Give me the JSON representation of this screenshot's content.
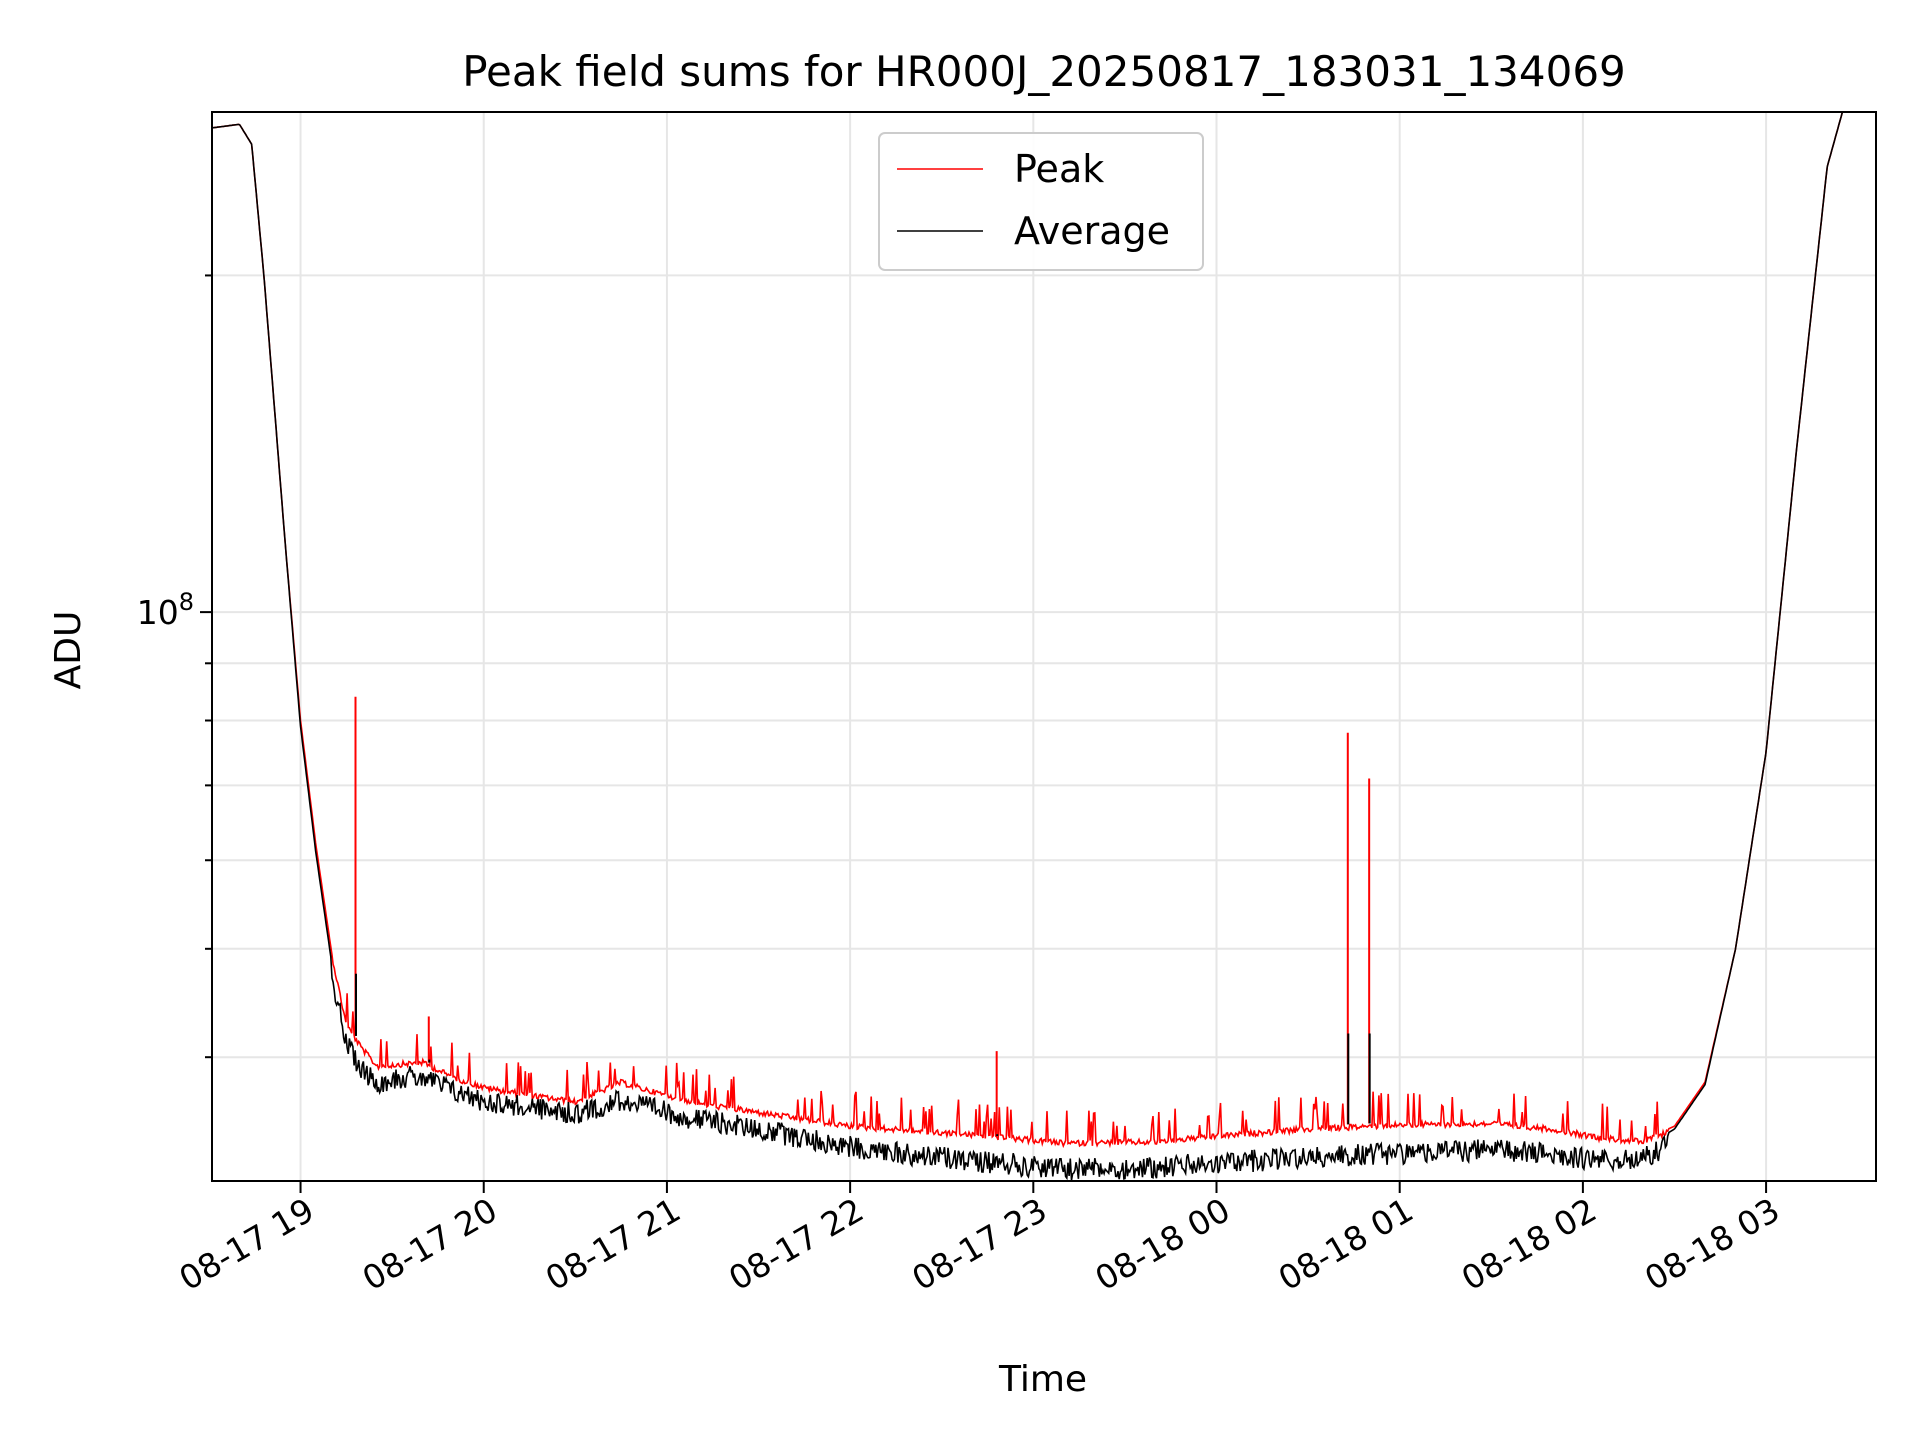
{
  "chart_data": {
    "type": "line",
    "title": "Peak field sums for HR000J_20250817_183031_134069",
    "xlabel": "Time",
    "ylabel": "ADU",
    "yscale": "log",
    "grid": true,
    "legend_placement": "upper center",
    "xlim": [
      "2025-08-17 18:31",
      "2025-08-18 03:36"
    ],
    "ylim": [
      31000000,
      280000000
    ],
    "x_ticks": [
      "08-17 19",
      "08-17 20",
      "08-17 21",
      "08-17 22",
      "08-17 23",
      "08-18 00",
      "08-18 01",
      "08-18 02",
      "08-18 03"
    ],
    "y_ticks": [
      {
        "value": 100000000,
        "label_base": "10",
        "label_exp": "8"
      }
    ],
    "series": [
      {
        "name": "Peak",
        "color": "#ff0000",
        "points": [
          [
            "2025-08-17 18:31",
            271000000
          ],
          [
            "2025-08-17 18:40",
            273000000
          ],
          [
            "2025-08-17 18:44",
            262000000
          ],
          [
            "2025-08-17 18:48",
            200000000
          ],
          [
            "2025-08-17 18:55",
            115000000
          ],
          [
            "2025-08-17 19:00",
            80000000
          ],
          [
            "2025-08-17 19:05",
            62000000
          ],
          [
            "2025-08-17 19:10",
            50000000
          ],
          [
            "2025-08-17 19:15",
            43000000
          ],
          [
            "2025-08-17 19:20",
            41000000
          ],
          [
            "2025-08-17 19:25",
            39500000
          ],
          [
            "2025-08-17 19:30",
            39600000
          ],
          [
            "2025-08-17 19:40",
            39800000
          ],
          [
            "2025-08-17 19:50",
            38600000
          ],
          [
            "2025-08-17 20:00",
            37800000
          ],
          [
            "2025-08-17 20:15",
            37200000
          ],
          [
            "2025-08-17 20:30",
            36700000
          ],
          [
            "2025-08-17 20:45",
            38200000
          ],
          [
            "2025-08-17 20:55",
            37500000
          ],
          [
            "2025-08-17 21:10",
            36600000
          ],
          [
            "2025-08-17 21:30",
            35900000
          ],
          [
            "2025-08-17 22:00",
            34900000
          ],
          [
            "2025-08-17 22:20",
            34600000
          ],
          [
            "2025-08-17 22:45",
            34200000
          ],
          [
            "2025-08-17 23:10",
            33700000
          ],
          [
            "2025-08-17 23:40",
            33800000
          ],
          [
            "2025-08-18 00:00",
            34200000
          ],
          [
            "2025-08-18 00:30",
            34700000
          ],
          [
            "2025-08-18 01:00",
            35000000
          ],
          [
            "2025-08-18 01:30",
            35100000
          ],
          [
            "2025-08-18 01:50",
            34700000
          ],
          [
            "2025-08-18 02:05",
            34100000
          ],
          [
            "2025-08-18 02:20",
            33800000
          ],
          [
            "2025-08-18 02:30",
            34700000
          ],
          [
            "2025-08-18 02:40",
            38000000
          ],
          [
            "2025-08-18 02:50",
            50000000
          ],
          [
            "2025-08-18 03:00",
            75000000
          ],
          [
            "2025-08-18 03:10",
            140000000
          ],
          [
            "2025-08-18 03:20",
            250000000
          ],
          [
            "2025-08-18 03:25",
            280000000
          ]
        ]
      },
      {
        "name": "Average",
        "color": "#000000",
        "points": [
          [
            "2025-08-17 18:31",
            271000000
          ],
          [
            "2025-08-17 18:40",
            273000000
          ],
          [
            "2025-08-17 18:44",
            262000000
          ],
          [
            "2025-08-17 18:48",
            200000000
          ],
          [
            "2025-08-17 18:55",
            115000000
          ],
          [
            "2025-08-17 19:00",
            79000000
          ],
          [
            "2025-08-17 19:05",
            61000000
          ],
          [
            "2025-08-17 19:10",
            49000000
          ],
          [
            "2025-08-17 19:15",
            42000000
          ],
          [
            "2025-08-17 19:20",
            40000000
          ],
          [
            "2025-08-17 19:25",
            38800000
          ],
          [
            "2025-08-17 19:30",
            39200000
          ],
          [
            "2025-08-17 19:40",
            39300000
          ],
          [
            "2025-08-17 19:50",
            38200000
          ],
          [
            "2025-08-17 20:00",
            37400000
          ],
          [
            "2025-08-17 20:15",
            36900000
          ],
          [
            "2025-08-17 20:30",
            36400000
          ],
          [
            "2025-08-17 20:45",
            37500000
          ],
          [
            "2025-08-17 20:55",
            36800000
          ],
          [
            "2025-08-17 21:10",
            36000000
          ],
          [
            "2025-08-17 21:30",
            35300000
          ],
          [
            "2025-08-17 22:00",
            34000000
          ],
          [
            "2025-08-17 22:20",
            33500000
          ],
          [
            "2025-08-17 22:45",
            33000000
          ],
          [
            "2025-08-17 23:10",
            32500000
          ],
          [
            "2025-08-17 23:40",
            32600000
          ],
          [
            "2025-08-18 00:00",
            32900000
          ],
          [
            "2025-08-18 00:30",
            33300000
          ],
          [
            "2025-08-18 01:00",
            33600000
          ],
          [
            "2025-08-18 01:30",
            33800000
          ],
          [
            "2025-08-18 01:50",
            33500000
          ],
          [
            "2025-08-18 02:05",
            33100000
          ],
          [
            "2025-08-18 02:20",
            33200000
          ],
          [
            "2025-08-18 02:30",
            34500000
          ],
          [
            "2025-08-18 02:40",
            37800000
          ],
          [
            "2025-08-18 02:50",
            50000000
          ],
          [
            "2025-08-18 03:00",
            75000000
          ],
          [
            "2025-08-18 03:10",
            140000000
          ],
          [
            "2025-08-18 03:20",
            250000000
          ],
          [
            "2025-08-18 03:25",
            280000000
          ]
        ]
      }
    ],
    "spikes": [
      {
        "x": "2025-08-17 19:18",
        "peak": 84000000,
        "average": 47500000
      },
      {
        "x": "2025-08-17 19:42",
        "peak": 43500000,
        "average": 39800000
      },
      {
        "x": "2025-08-17 22:48",
        "peak": 40500000,
        "average": 34000000
      },
      {
        "x": "2025-08-18 00:43",
        "peak": 78000000,
        "average": 42000000
      },
      {
        "x": "2025-08-18 00:50",
        "peak": 71000000,
        "average": 42000000
      }
    ]
  }
}
